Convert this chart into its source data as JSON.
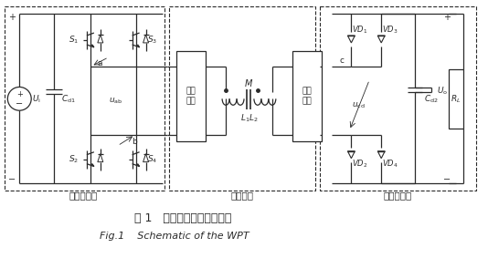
{
  "fig_width": 5.34,
  "fig_height": 2.83,
  "dpi": 100,
  "bg_color": "#ffffff",
  "line_color": "#2a2a2a",
  "caption_cn": "图 1   无线电能传输系统原理",
  "caption_en": "Fig.1    Schematic of the WPT",
  "label_inverter": "高频逆变器",
  "label_resonance": "谐振网络",
  "label_rectifier": "高频整流器",
  "label_comp1": "补偿\n网络",
  "label_comp2": "补偿\n网络"
}
